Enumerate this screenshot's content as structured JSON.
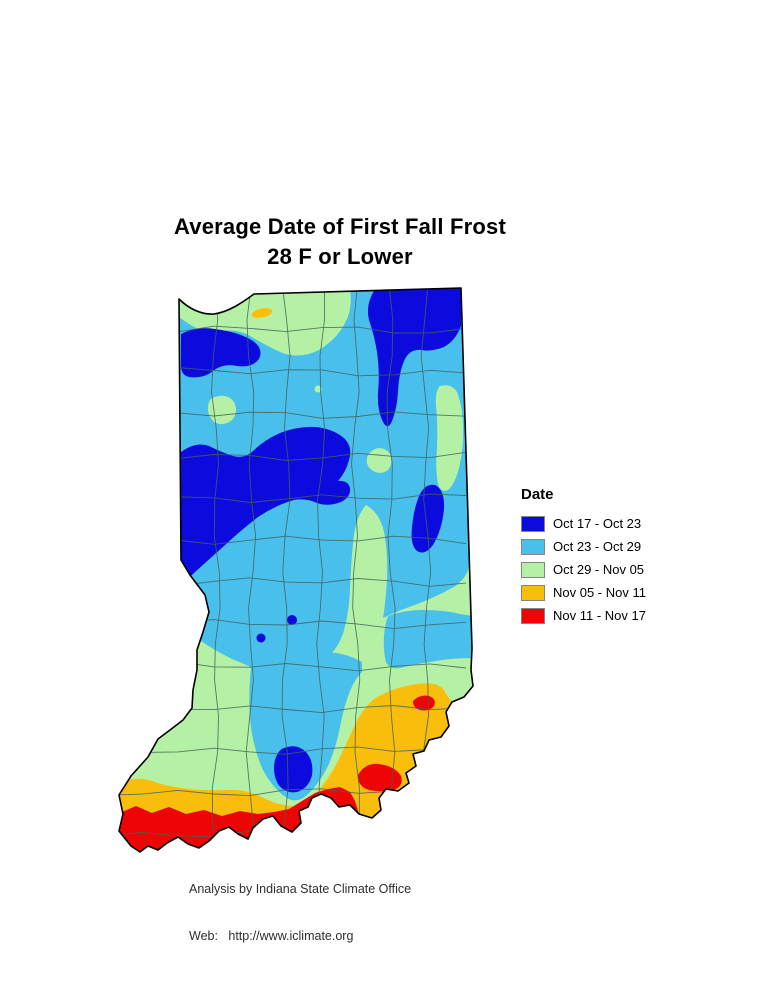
{
  "title": {
    "line1": "Average Date of First Fall Frost",
    "line2": "28 F or Lower"
  },
  "legend": {
    "title": "Date",
    "items": [
      {
        "label": "Oct 17 - Oct 23",
        "color": "#0b0bdd"
      },
      {
        "label": "Oct 23 - Oct 29",
        "color": "#49bfec"
      },
      {
        "label": "Oct 29 - Nov 05",
        "color": "#b5f1a4"
      },
      {
        "label": "Nov 05 - Nov 11",
        "color": "#f8be0b"
      },
      {
        "label": "Nov 11 - Nov 17",
        "color": "#ee0404"
      }
    ]
  },
  "colors": {
    "dark_blue": "#0b0bdd",
    "light_blue": "#49bfec",
    "light_green": "#b5f1a4",
    "orange": "#f8be0b",
    "red": "#ee0404",
    "county_line": "#43625b",
    "state_outline": "#000000",
    "background": "#ffffff"
  },
  "attribution": {
    "line1": "Analysis by Indiana State Climate Office",
    "line2": "Web:   http://www.iclimate.org"
  }
}
